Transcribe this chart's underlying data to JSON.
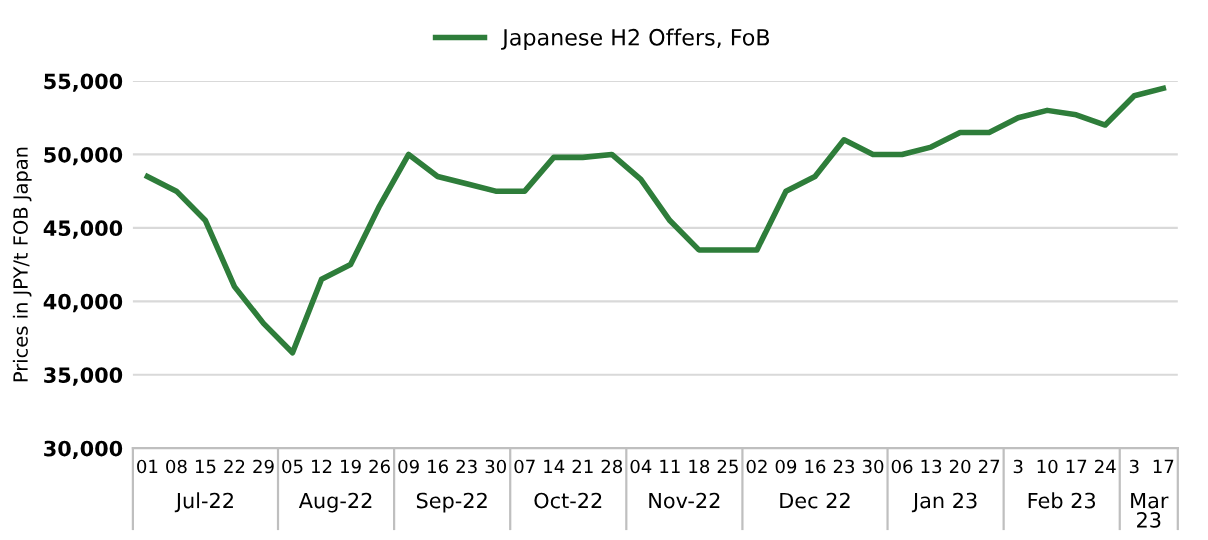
{
  "chart_data": {
    "type": "line",
    "ylabel": "Prices in JPY/t FOB Japan",
    "categories": [
      "01",
      "08",
      "15",
      "22",
      "29",
      "05",
      "12",
      "19",
      "26",
      "09",
      "16",
      "23",
      "30",
      "07",
      "14",
      "21",
      "28",
      "04",
      "11",
      "18",
      "25",
      "02",
      "09",
      "16",
      "23",
      "30",
      "06",
      "13",
      "20",
      "27",
      "3",
      "10",
      "17",
      "24",
      "3",
      "17"
    ],
    "series": [
      {
        "name": "Japanese H2 Offers, FoB",
        "color": "#2e7d3a",
        "values": [
          48500,
          47500,
          45500,
          41000,
          38500,
          36500,
          41500,
          42500,
          46500,
          50000,
          48500,
          48000,
          47500,
          47500,
          49800,
          49800,
          50000,
          48300,
          45500,
          43500,
          43500,
          43500,
          47500,
          48500,
          51000,
          50000,
          50000,
          50500,
          51500,
          51500,
          52500,
          53000,
          52700,
          52000,
          54000,
          54500
        ]
      }
    ],
    "annotations": [
      "Jul-22",
      "Aug-22",
      "Sep-22",
      "Oct-22",
      "Nov-22",
      "Dec 22",
      "Jan 23",
      "Feb 23",
      "Mar 23"
    ],
    "ylim": [
      30000,
      55000
    ],
    "yticks": [
      {
        "value": 30000,
        "label": "30,000"
      },
      {
        "value": 35000,
        "label": "35,000"
      },
      {
        "value": 40000,
        "label": "40,000"
      },
      {
        "value": 45000,
        "label": "45,000"
      },
      {
        "value": 50000,
        "label": "50,000"
      },
      {
        "value": 55000,
        "label": "55,000"
      }
    ],
    "grid": "y",
    "legend": "top",
    "marker": "none",
    "line_style": "solid"
  }
}
